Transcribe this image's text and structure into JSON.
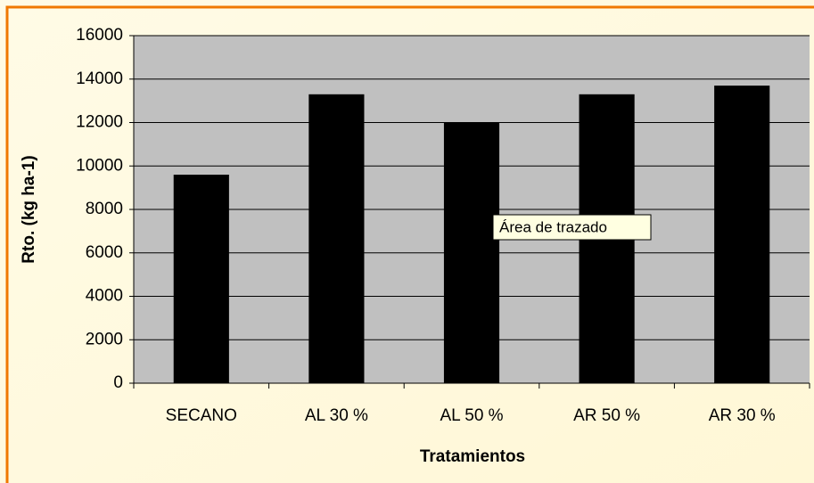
{
  "chart_data": {
    "type": "bar",
    "categories": [
      "SECANO",
      "AL 30 %",
      "AL 50 %",
      "AR 50 %",
      "AR 30 %"
    ],
    "values": [
      9600,
      13300,
      12000,
      13300,
      13700
    ],
    "color": "#000000",
    "ylim": [
      0,
      16000
    ],
    "yticks": [
      0,
      2000,
      4000,
      6000,
      8000,
      10000,
      12000,
      14000,
      16000
    ],
    "grid": true,
    "x_label": "Tratamientos",
    "y_label": "Rto. (kg ha-1)",
    "tooltip": "Área de trazado"
  }
}
